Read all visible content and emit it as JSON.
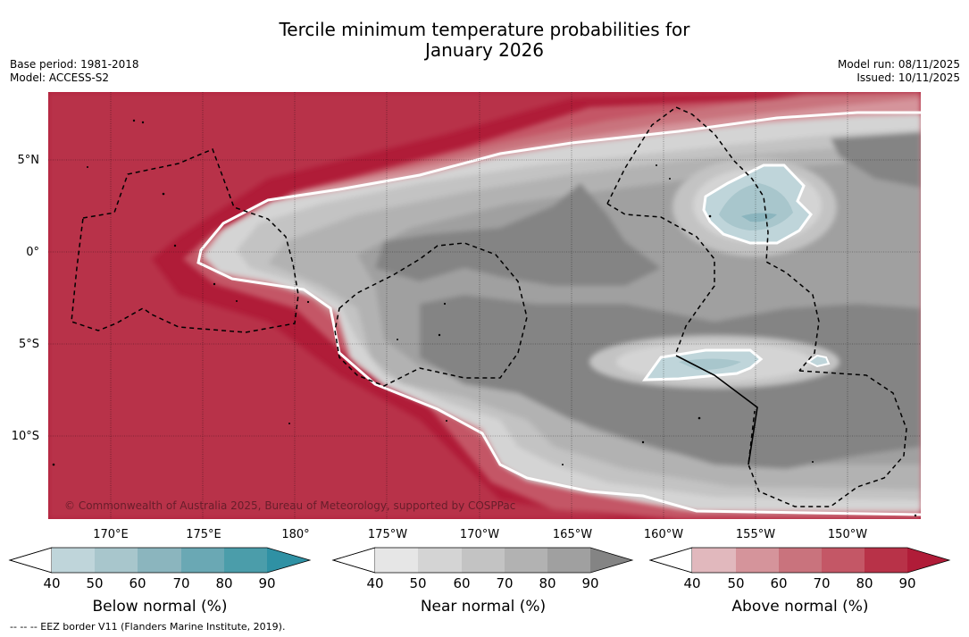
{
  "title_line1": "Tercile minimum temperature probabilities for",
  "title_line2": "January 2026",
  "base_period": "Base period: 1981-2018",
  "model": "Model: ACCESS-S2",
  "model_run": "Model run: 08/11/2025",
  "issued": "Issued: 10/11/2025",
  "copyright": "© Commonwealth of Australia 2025, Bureau of Meteorology, supported by COSPPac",
  "footnote": "--  --  -- EEZ border V11 (Flanders Marine Institute, 2019).",
  "lat_labels": [
    "5°N",
    "0°",
    "5°S",
    "10°S"
  ],
  "lon_labels": [
    "170°E",
    "175°E",
    "180°",
    "175°W",
    "170°W",
    "165°W",
    "160°W",
    "155°W",
    "150°W"
  ],
  "colorbars": [
    {
      "title": "Below normal (%)",
      "ticks": [
        "40",
        "50",
        "60",
        "70",
        "80",
        "90"
      ],
      "colors": [
        "#bfd5da",
        "#a8c6cc",
        "#8bb5be",
        "#6aa8b4",
        "#4b9daa",
        "#2f91a4"
      ]
    },
    {
      "title": "Near normal (%)",
      "ticks": [
        "40",
        "50",
        "60",
        "70",
        "80",
        "90"
      ],
      "colors": [
        "#e6e6e6",
        "#d4d4d4",
        "#c3c3c3",
        "#b2b2b2",
        "#a0a0a0",
        "#848484"
      ]
    },
    {
      "title": "Above normal (%)",
      "ticks": [
        "40",
        "50",
        "60",
        "70",
        "80",
        "90"
      ],
      "colors": [
        "#e1b8bd",
        "#d5949b",
        "#c9737d",
        "#c45766",
        "#b83248",
        "#b01c38"
      ]
    }
  ]
}
